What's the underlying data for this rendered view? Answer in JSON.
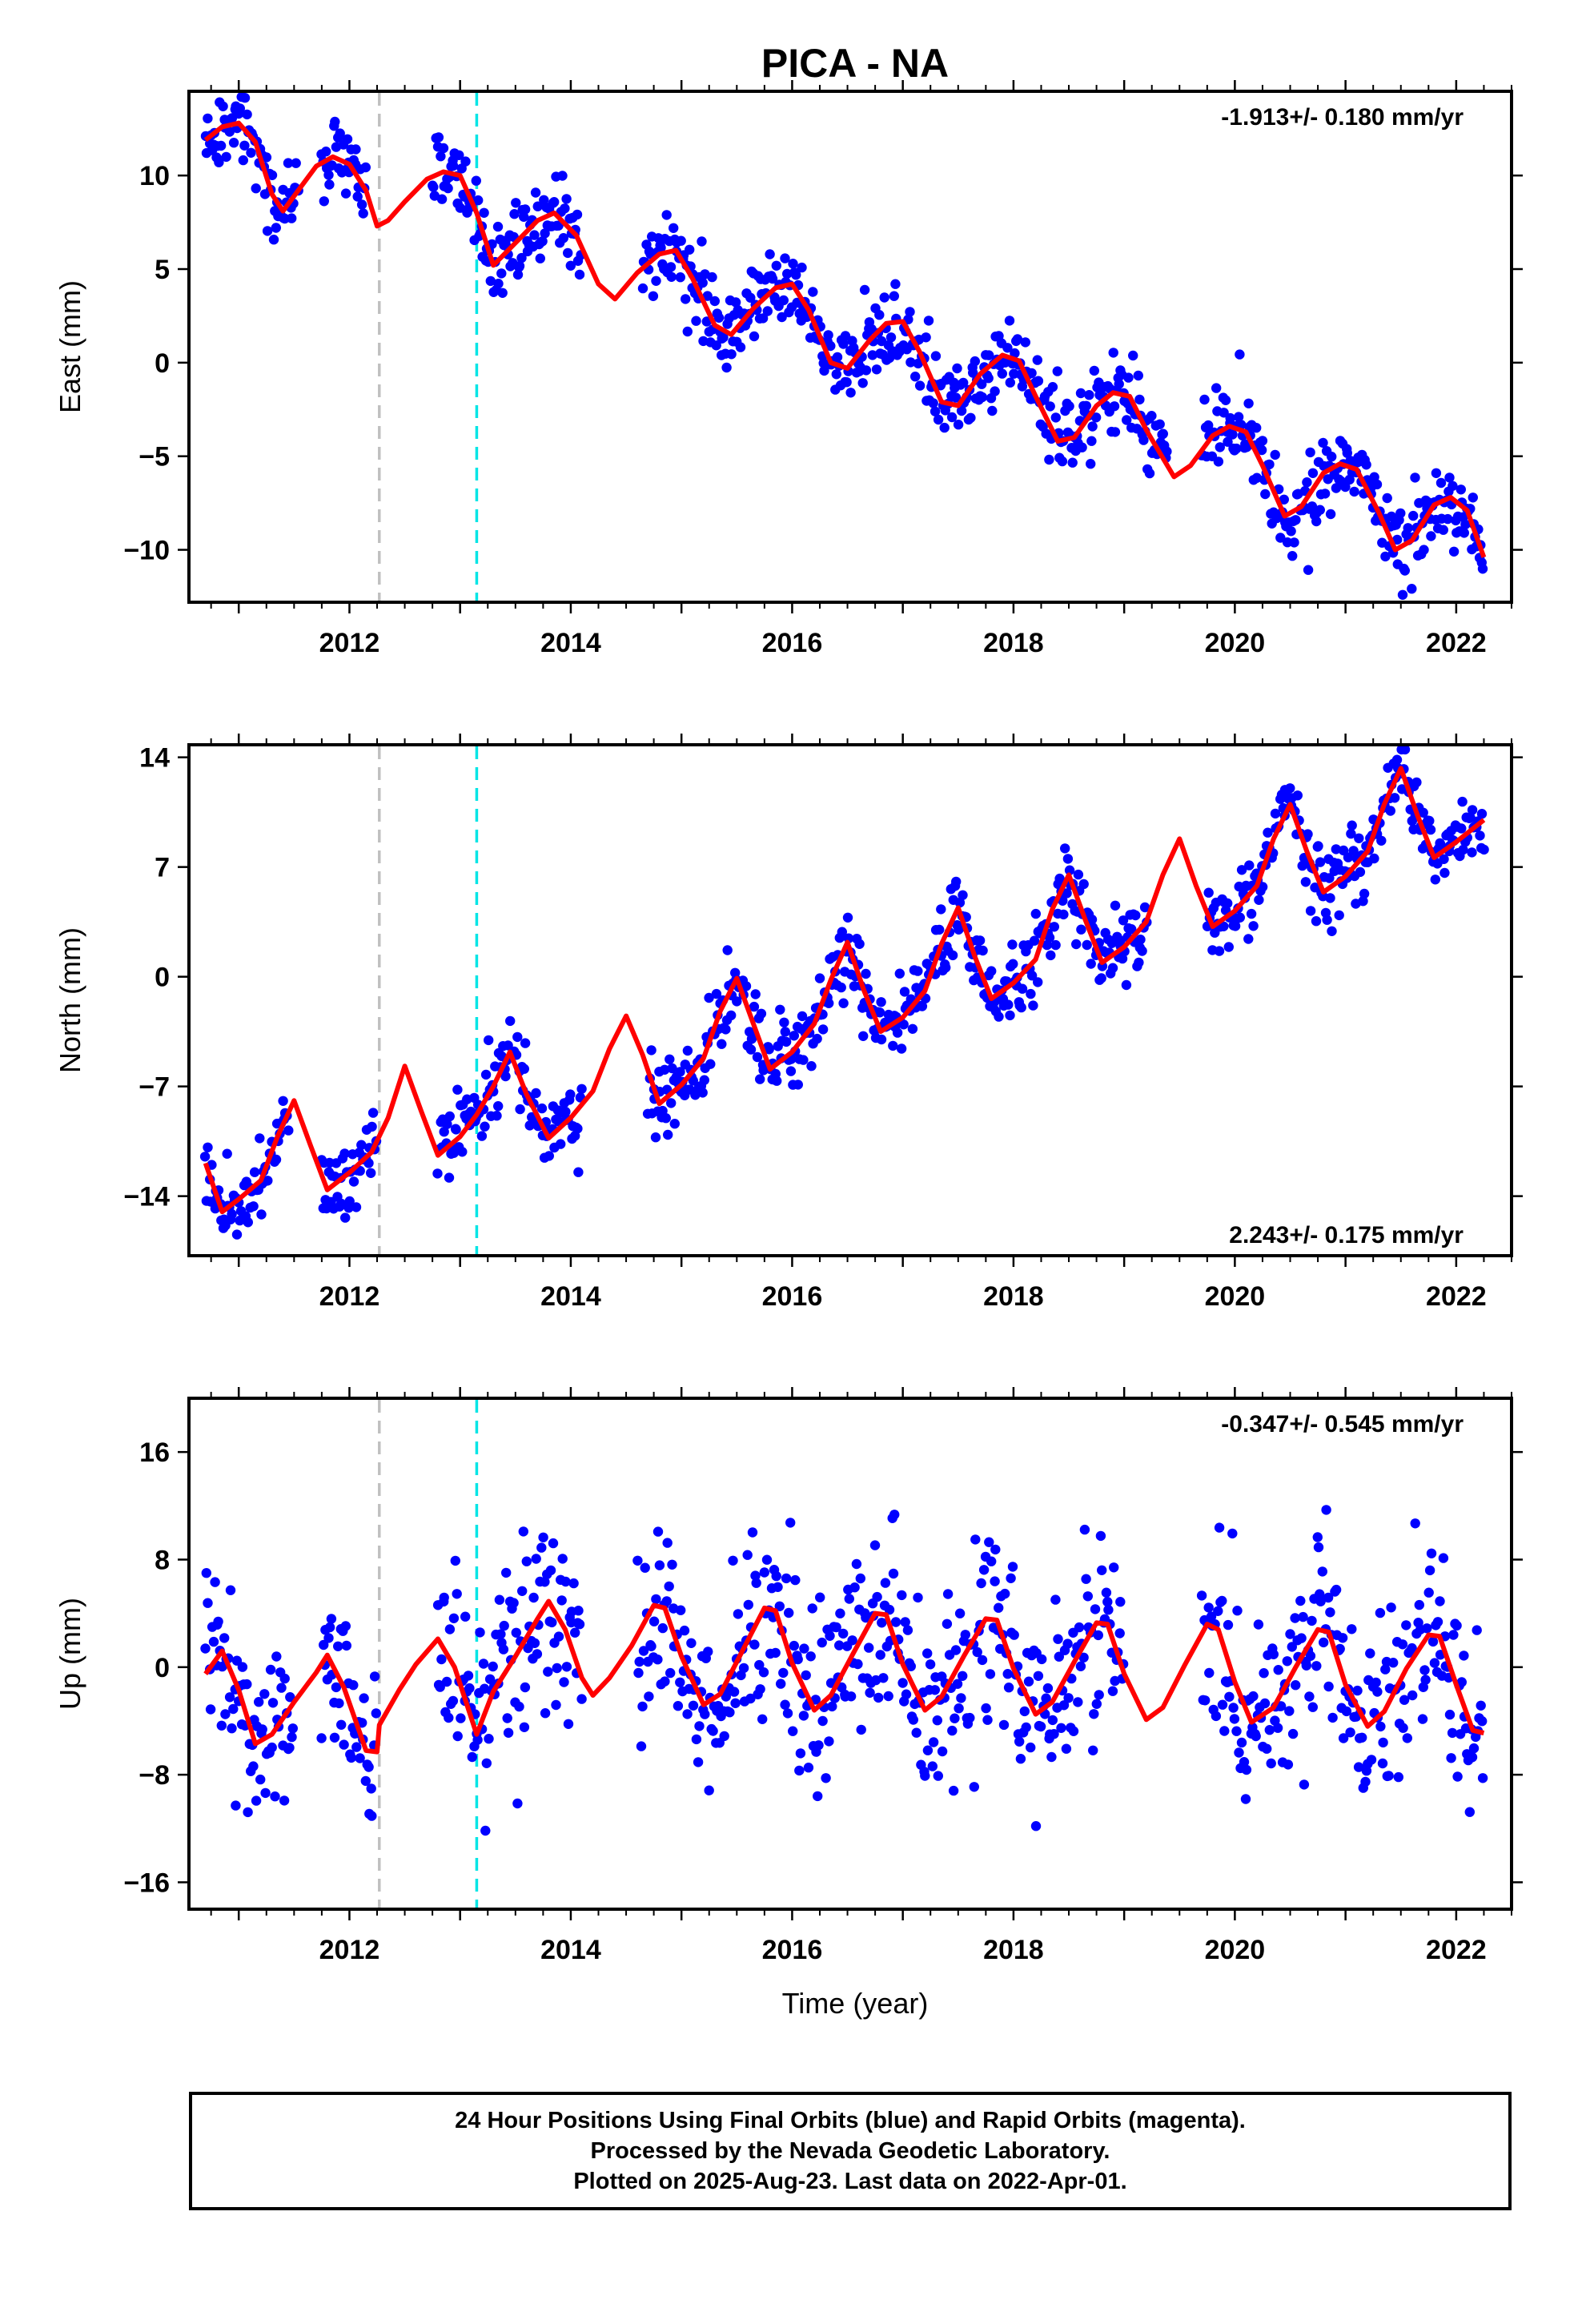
{
  "title": "PICA - NA",
  "xlabel": "Time (year)",
  "footer": {
    "line1": "24 Hour Positions Using Final Orbits (blue) and Rapid Orbits (magenta).",
    "line2": "Processed by the Nevada Geodetic Laboratory.",
    "line3": "Plotted on 2025-Aug-23. Last data on 2022-Apr-01."
  },
  "colors": {
    "points": "#0000ff",
    "model": "#ff0000",
    "event_gray": "#c0c0c0",
    "event_cyan": "#00e5e5"
  },
  "chart_data": [
    {
      "type": "scatter",
      "component": "east",
      "ylabel": "East (mm)",
      "rate_text": "-1.913+/- 0.180 mm/yr",
      "rate_position": "top-right",
      "xlim": [
        2010.55,
        2022.5
      ],
      "ylim": [
        -12.8,
        14.5
      ],
      "yticks": [
        -10,
        -5,
        0,
        5,
        10
      ],
      "xticks": [
        2012,
        2014,
        2016,
        2018,
        2020,
        2022
      ],
      "rate": -1.913,
      "seasonal_amplitude": 2.3,
      "noise": 1.1,
      "intercept_2010_7": 11.8,
      "data_ranges": [
        [
          2010.7,
          2011.55
        ],
        [
          2011.75,
          2012.15
        ],
        [
          2012.75,
          2014.1
        ],
        [
          2014.65,
          2019.4
        ],
        [
          2019.7,
          2022.25
        ]
      ],
      "event_lines": [
        2012.27,
        2013.15
      ],
      "model_points": [
        [
          2010.7,
          11.9
        ],
        [
          2010.85,
          12.6
        ],
        [
          2011.0,
          12.8
        ],
        [
          2011.15,
          11.8
        ],
        [
          2011.3,
          9.0
        ],
        [
          2011.4,
          8.1
        ],
        [
          2011.55,
          9.3
        ],
        [
          2011.7,
          10.5
        ],
        [
          2011.85,
          11.0
        ],
        [
          2012.0,
          10.6
        ],
        [
          2012.15,
          9.2
        ],
        [
          2012.25,
          7.3
        ],
        [
          2012.35,
          7.6
        ],
        [
          2012.5,
          8.6
        ],
        [
          2012.7,
          9.8
        ],
        [
          2012.85,
          10.2
        ],
        [
          2013.0,
          10.0
        ],
        [
          2013.15,
          8.0
        ],
        [
          2013.3,
          5.2
        ],
        [
          2013.5,
          6.4
        ],
        [
          2013.7,
          7.6
        ],
        [
          2013.85,
          8.0
        ],
        [
          2014.05,
          6.8
        ],
        [
          2014.25,
          4.2
        ],
        [
          2014.4,
          3.4
        ],
        [
          2014.6,
          4.8
        ],
        [
          2014.8,
          5.8
        ],
        [
          2014.95,
          6.0
        ],
        [
          2015.1,
          4.5
        ],
        [
          2015.3,
          2.0
        ],
        [
          2015.45,
          1.5
        ],
        [
          2015.65,
          2.9
        ],
        [
          2015.85,
          4.0
        ],
        [
          2016.0,
          4.2
        ],
        [
          2016.15,
          2.8
        ],
        [
          2016.35,
          0.0
        ],
        [
          2016.5,
          -0.3
        ],
        [
          2016.7,
          1.2
        ],
        [
          2016.85,
          2.1
        ],
        [
          2017.0,
          2.2
        ],
        [
          2017.15,
          0.6
        ],
        [
          2017.35,
          -2.1
        ],
        [
          2017.5,
          -2.3
        ],
        [
          2017.7,
          -0.6
        ],
        [
          2017.9,
          0.4
        ],
        [
          2018.05,
          0.1
        ],
        [
          2018.2,
          -1.8
        ],
        [
          2018.4,
          -4.2
        ],
        [
          2018.55,
          -4.0
        ],
        [
          2018.75,
          -2.3
        ],
        [
          2018.9,
          -1.6
        ],
        [
          2019.05,
          -1.8
        ],
        [
          2019.2,
          -3.6
        ],
        [
          2019.45,
          -6.1
        ],
        [
          2019.6,
          -5.5
        ],
        [
          2019.8,
          -3.9
        ],
        [
          2019.95,
          -3.4
        ],
        [
          2020.1,
          -3.7
        ],
        [
          2020.25,
          -5.5
        ],
        [
          2020.45,
          -8.2
        ],
        [
          2020.6,
          -7.7
        ],
        [
          2020.8,
          -5.9
        ],
        [
          2020.95,
          -5.4
        ],
        [
          2021.1,
          -5.7
        ],
        [
          2021.3,
          -8.0
        ],
        [
          2021.45,
          -10.0
        ],
        [
          2021.6,
          -9.5
        ],
        [
          2021.8,
          -7.6
        ],
        [
          2021.95,
          -7.2
        ],
        [
          2022.1,
          -7.9
        ],
        [
          2022.25,
          -10.4
        ]
      ]
    },
    {
      "type": "scatter",
      "component": "north",
      "ylabel": "North (mm)",
      "rate_text": "2.243+/- 0.175 mm/yr",
      "rate_position": "bottom-right",
      "xlim": [
        2010.55,
        2022.5
      ],
      "ylim": [
        -17.8,
        14.8
      ],
      "yticks": [
        -14,
        -7,
        0,
        7,
        14
      ],
      "xticks": [
        2012,
        2014,
        2016,
        2018,
        2020,
        2022
      ],
      "rate": 2.243,
      "seasonal_amplitude": 3.3,
      "noise": 1.2,
      "intercept_2010_7": -13.2,
      "data_ranges": [
        [
          2010.7,
          2011.45
        ],
        [
          2011.75,
          2012.25
        ],
        [
          2012.8,
          2014.1
        ],
        [
          2014.7,
          2019.2
        ],
        [
          2019.75,
          2022.25
        ]
      ],
      "event_lines": [
        2012.27,
        2013.15
      ],
      "model_points": [
        [
          2010.7,
          -11.9
        ],
        [
          2010.85,
          -15.0
        ],
        [
          2011.0,
          -14.2
        ],
        [
          2011.2,
          -13.0
        ],
        [
          2011.35,
          -10.2
        ],
        [
          2011.5,
          -7.9
        ],
        [
          2011.65,
          -10.8
        ],
        [
          2011.8,
          -13.6
        ],
        [
          2012.0,
          -12.5
        ],
        [
          2012.2,
          -11.2
        ],
        [
          2012.35,
          -9.0
        ],
        [
          2012.5,
          -5.7
        ],
        [
          2012.65,
          -8.6
        ],
        [
          2012.8,
          -11.4
        ],
        [
          2013.0,
          -10.2
        ],
        [
          2013.15,
          -8.8
        ],
        [
          2013.3,
          -7.0
        ],
        [
          2013.45,
          -4.8
        ],
        [
          2013.6,
          -7.5
        ],
        [
          2013.8,
          -10.3
        ],
        [
          2014.0,
          -9.0
        ],
        [
          2014.2,
          -7.3
        ],
        [
          2014.35,
          -4.6
        ],
        [
          2014.5,
          -2.5
        ],
        [
          2014.65,
          -5.0
        ],
        [
          2014.8,
          -8.1
        ],
        [
          2015.0,
          -6.9
        ],
        [
          2015.2,
          -5.2
        ],
        [
          2015.35,
          -2.2
        ],
        [
          2015.5,
          -0.1
        ],
        [
          2015.65,
          -3.0
        ],
        [
          2015.8,
          -5.9
        ],
        [
          2016.0,
          -4.8
        ],
        [
          2016.2,
          -3.0
        ],
        [
          2016.35,
          -0.2
        ],
        [
          2016.5,
          2.2
        ],
        [
          2016.65,
          -0.9
        ],
        [
          2016.8,
          -3.5
        ],
        [
          2017.0,
          -2.6
        ],
        [
          2017.2,
          -0.9
        ],
        [
          2017.35,
          2.1
        ],
        [
          2017.5,
          4.4
        ],
        [
          2017.65,
          1.3
        ],
        [
          2017.8,
          -1.4
        ],
        [
          2018.0,
          -0.4
        ],
        [
          2018.2,
          1.1
        ],
        [
          2018.35,
          4.3
        ],
        [
          2018.5,
          6.5
        ],
        [
          2018.65,
          3.6
        ],
        [
          2018.8,
          0.9
        ],
        [
          2019.0,
          1.9
        ],
        [
          2019.2,
          3.5
        ],
        [
          2019.35,
          6.5
        ],
        [
          2019.5,
          8.8
        ],
        [
          2019.65,
          5.8
        ],
        [
          2019.8,
          3.2
        ],
        [
          2020.0,
          4.2
        ],
        [
          2020.2,
          5.8
        ],
        [
          2020.35,
          8.8
        ],
        [
          2020.5,
          11.0
        ],
        [
          2020.65,
          8.0
        ],
        [
          2020.8,
          5.4
        ],
        [
          2021.0,
          6.4
        ],
        [
          2021.2,
          8.0
        ],
        [
          2021.35,
          11.0
        ],
        [
          2021.5,
          13.3
        ],
        [
          2021.65,
          10.3
        ],
        [
          2021.8,
          7.6
        ],
        [
          2022.0,
          8.6
        ],
        [
          2022.25,
          10.0
        ]
      ]
    },
    {
      "type": "scatter",
      "component": "up",
      "ylabel": "Up (mm)",
      "rate_text": "-0.347+/- 0.545 mm/yr",
      "rate_position": "top-right",
      "xlim": [
        2010.55,
        2022.5
      ],
      "ylim": [
        -18,
        20
      ],
      "yticks": [
        -16,
        -8,
        0,
        8,
        16
      ],
      "xticks": [
        2012,
        2014,
        2016,
        2018,
        2020,
        2022
      ],
      "rate": -0.347,
      "seasonal_amplitude": 3.8,
      "noise": 3.6,
      "intercept_2010_7": 0.0,
      "data_ranges": [
        [
          2010.7,
          2011.5
        ],
        [
          2011.75,
          2012.25
        ],
        [
          2012.8,
          2014.1
        ],
        [
          2014.6,
          2019.0
        ],
        [
          2019.7,
          2022.25
        ]
      ],
      "event_lines": [
        2012.27,
        2013.15
      ],
      "model_points": [
        [
          2010.7,
          -0.5
        ],
        [
          2010.85,
          1.2
        ],
        [
          2011.0,
          -1.7
        ],
        [
          2011.15,
          -5.7
        ],
        [
          2011.3,
          -5.0
        ],
        [
          2011.5,
          -2.6
        ],
        [
          2011.7,
          -0.4
        ],
        [
          2011.8,
          0.9
        ],
        [
          2011.95,
          -1.5
        ],
        [
          2012.15,
          -6.2
        ],
        [
          2012.25,
          -6.3
        ],
        [
          2012.27,
          -4.3
        ],
        [
          2012.45,
          -1.7
        ],
        [
          2012.6,
          0.2
        ],
        [
          2012.8,
          2.1
        ],
        [
          2012.95,
          0.0
        ],
        [
          2013.15,
          -5.0
        ],
        [
          2013.3,
          -1.8
        ],
        [
          2013.5,
          0.8
        ],
        [
          2013.7,
          3.6
        ],
        [
          2013.8,
          4.9
        ],
        [
          2013.95,
          2.8
        ],
        [
          2014.1,
          -0.8
        ],
        [
          2014.2,
          -2.1
        ],
        [
          2014.35,
          -0.8
        ],
        [
          2014.55,
          1.6
        ],
        [
          2014.75,
          4.6
        ],
        [
          2014.85,
          4.4
        ],
        [
          2015.0,
          0.8
        ],
        [
          2015.2,
          -2.8
        ],
        [
          2015.35,
          -2.0
        ],
        [
          2015.55,
          1.2
        ],
        [
          2015.75,
          4.4
        ],
        [
          2015.85,
          4.2
        ],
        [
          2016.0,
          0.3
        ],
        [
          2016.2,
          -3.2
        ],
        [
          2016.35,
          -2.1
        ],
        [
          2016.55,
          1.0
        ],
        [
          2016.75,
          4.0
        ],
        [
          2016.85,
          3.9
        ],
        [
          2017.0,
          0.2
        ],
        [
          2017.2,
          -3.2
        ],
        [
          2017.35,
          -2.2
        ],
        [
          2017.55,
          0.8
        ],
        [
          2017.75,
          3.6
        ],
        [
          2017.85,
          3.5
        ],
        [
          2018.0,
          -0.1
        ],
        [
          2018.2,
          -3.5
        ],
        [
          2018.35,
          -2.6
        ],
        [
          2018.55,
          0.4
        ],
        [
          2018.75,
          3.3
        ],
        [
          2018.85,
          3.2
        ],
        [
          2019.0,
          -0.5
        ],
        [
          2019.2,
          -3.9
        ],
        [
          2019.35,
          -3.0
        ],
        [
          2019.55,
          0.2
        ],
        [
          2019.75,
          3.2
        ],
        [
          2019.85,
          2.8
        ],
        [
          2020.0,
          -1.1
        ],
        [
          2020.15,
          -4.1
        ],
        [
          2020.35,
          -3.0
        ],
        [
          2020.55,
          0.0
        ],
        [
          2020.75,
          2.8
        ],
        [
          2020.85,
          2.6
        ],
        [
          2021.0,
          -1.3
        ],
        [
          2021.2,
          -4.4
        ],
        [
          2021.35,
          -3.3
        ],
        [
          2021.55,
          -0.1
        ],
        [
          2021.75,
          2.4
        ],
        [
          2021.85,
          2.3
        ],
        [
          2022.0,
          -1.3
        ],
        [
          2022.15,
          -4.7
        ],
        [
          2022.25,
          -4.9
        ]
      ]
    }
  ]
}
